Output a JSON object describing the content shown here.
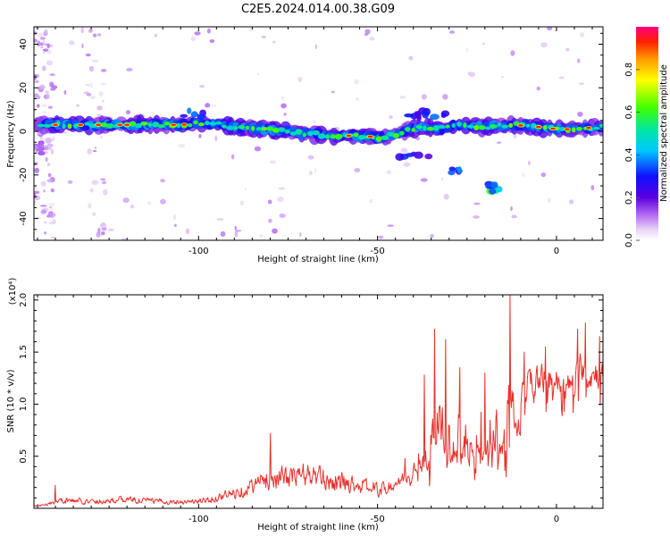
{
  "figure_title": "C2E5.2024.014.00.38.G09",
  "chart_data": [
    {
      "type": "heatmap",
      "title": "",
      "xlabel": "Height of straight line (km)",
      "ylabel": "Frequency (Hz)",
      "xlim": [
        -146,
        13
      ],
      "ylim": [
        -50,
        48
      ],
      "xticks": [
        -100,
        -50,
        0
      ],
      "xtick_labels": [
        "-100",
        "-50",
        "0"
      ],
      "yticks": [
        -40,
        -20,
        0,
        20,
        40
      ],
      "ytick_labels": [
        "-40",
        "-20",
        "0",
        "20",
        "40"
      ],
      "ridge": {
        "x": [
          -143,
          -135,
          -125,
          -115,
          -105,
          -98,
          -90,
          -80,
          -70,
          -62,
          -55,
          -48,
          -43,
          -38,
          -33,
          -27,
          -20,
          -12,
          -5,
          0,
          5,
          12
        ],
        "y": [
          3,
          3,
          3,
          3,
          3,
          4,
          2,
          1,
          -1,
          -2,
          -2,
          -3,
          0,
          2,
          1,
          3,
          2,
          3,
          2,
          1,
          1,
          2
        ]
      },
      "blobs": [
        {
          "x": -40,
          "y": 8,
          "w": 12,
          "h": 3,
          "amp": 0.35
        },
        {
          "x": -35,
          "y": 7,
          "w": 8,
          "h": 3,
          "amp": 0.3
        },
        {
          "x": -40,
          "y": -11,
          "w": 10,
          "h": 3,
          "amp": 0.3
        },
        {
          "x": -28,
          "y": -18,
          "w": 3,
          "h": 2,
          "amp": 0.35
        },
        {
          "x": -17,
          "y": -27,
          "w": 3,
          "h": 2,
          "amp": 0.55
        },
        {
          "x": -18,
          "y": -25,
          "w": 3,
          "h": 2,
          "amp": 0.4
        },
        {
          "x": -102,
          "y": 8,
          "w": 8,
          "h": 3,
          "amp": 0.35
        },
        {
          "x": -145,
          "y": -8,
          "w": 3,
          "h": 6,
          "amp": 0.15
        }
      ],
      "colorbar": {
        "label": "Normalized spectral amplitude",
        "range": [
          0,
          1
        ],
        "ticks": [
          0.0,
          0.2,
          0.4,
          0.6,
          0.8
        ],
        "tick_labels": [
          "0.0",
          "0.2",
          "0.4",
          "0.6",
          "0.8"
        ]
      }
    },
    {
      "type": "line",
      "title": "",
      "xlabel": "Height of straight line (km)",
      "ylabel": "SNR (10 * v/v)",
      "multiplier_label": "(x10⁴)",
      "xlim": [
        -146,
        13
      ],
      "ylim": [
        0,
        2.05
      ],
      "xticks": [
        -100,
        -50,
        0
      ],
      "xtick_labels": [
        "-100",
        "-50",
        "0"
      ],
      "yticks": [
        0.5,
        1.0,
        1.5,
        2.0
      ],
      "ytick_labels": [
        "0.5",
        "1.0",
        "1.5",
        "2.0"
      ],
      "color": "#e8302a",
      "envelope": {
        "x": [
          -146,
          -138,
          -130,
          -120,
          -110,
          -100,
          -90,
          -85,
          -80,
          -75,
          -70,
          -65,
          -60,
          -55,
          -50,
          -45,
          -40,
          -37,
          -35,
          -33,
          -30,
          -27,
          -25,
          -22,
          -20,
          -18,
          -16,
          -14,
          -13,
          -12,
          -10,
          -8,
          -5,
          -2,
          0,
          3,
          5,
          7,
          9,
          11,
          13
        ],
        "y": [
          0.03,
          0.12,
          0.1,
          0.13,
          0.1,
          0.1,
          0.2,
          0.3,
          0.4,
          0.4,
          0.45,
          0.38,
          0.35,
          0.3,
          0.25,
          0.3,
          0.5,
          0.6,
          0.75,
          0.95,
          0.8,
          0.7,
          0.65,
          0.9,
          0.85,
          0.9,
          0.8,
          1.1,
          1.5,
          1.1,
          1.1,
          1.25,
          1.3,
          1.3,
          1.25,
          1.2,
          1.25,
          1.45,
          1.3,
          1.35,
          1.3
        ]
      },
      "peaks": [
        {
          "x": -140,
          "y": 0.22
        },
        {
          "x": -80,
          "y": 0.72
        },
        {
          "x": -34,
          "y": 1.72
        },
        {
          "x": -37,
          "y": 1.28
        },
        {
          "x": -31,
          "y": 1.62
        },
        {
          "x": -27,
          "y": 1.35
        },
        {
          "x": -20,
          "y": 1.3
        },
        {
          "x": -13,
          "y": 2.05
        },
        {
          "x": -3,
          "y": 1.55
        },
        {
          "x": 6,
          "y": 1.72
        },
        {
          "x": 8,
          "y": 1.78
        },
        {
          "x": 12,
          "y": 1.65
        },
        {
          "x": -9,
          "y": 1.5
        }
      ]
    }
  ]
}
